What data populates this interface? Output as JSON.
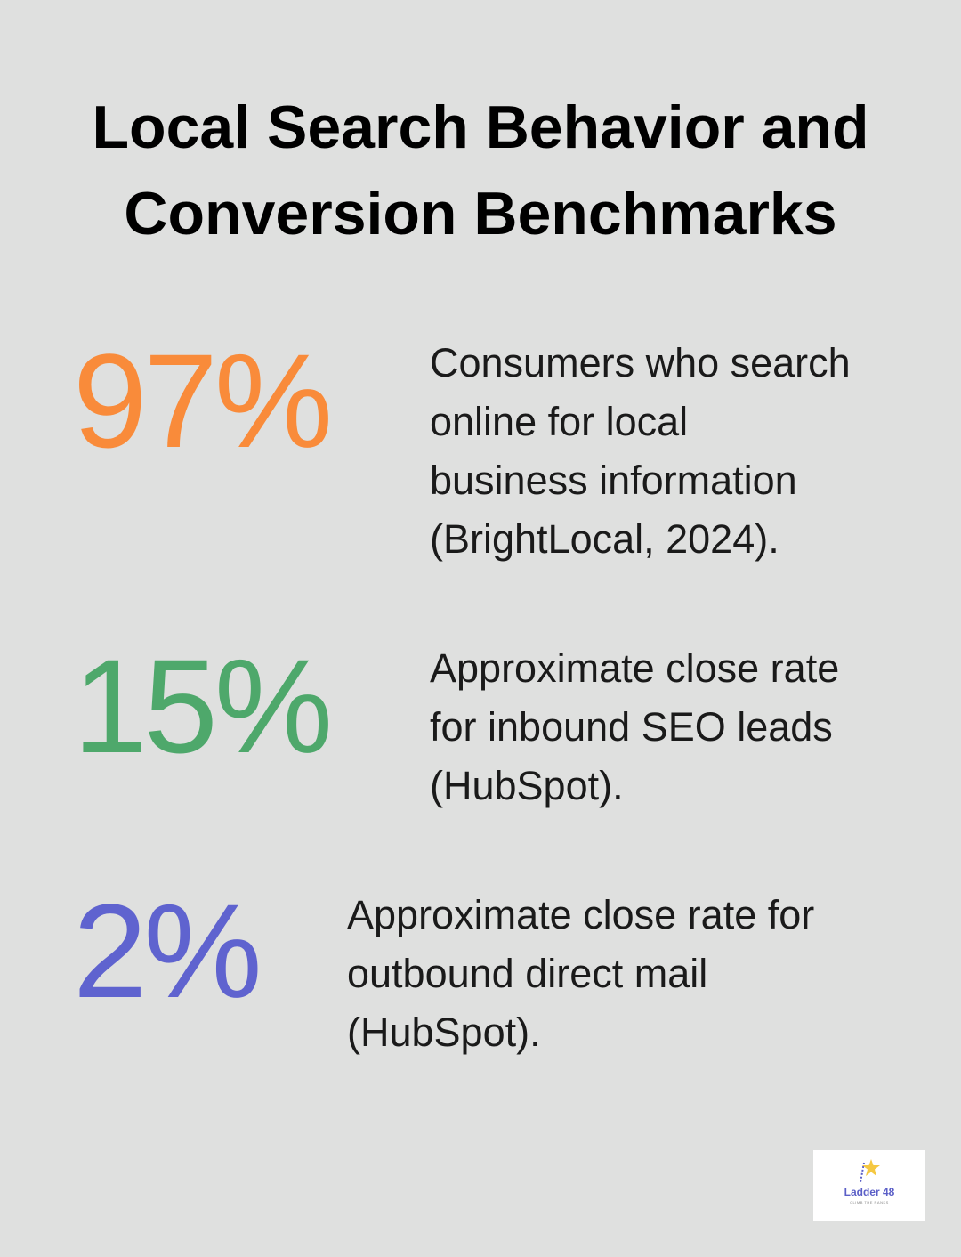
{
  "title": [
    "Local Search Behavior and",
    "Conversion Benchmarks"
  ],
  "stats": [
    {
      "value": "97%",
      "color": "#f98b3a",
      "description": [
        "Consumers who search",
        "online for local",
        "business information",
        "(BrightLocal, 2024)."
      ]
    },
    {
      "value": "15%",
      "color": "#4ea86b",
      "description": [
        "Approximate close rate",
        "for inbound SEO leads",
        "(HubSpot)."
      ]
    },
    {
      "value": "2%",
      "color": "#5f63cf",
      "description": [
        "Approximate close rate for",
        "outbound direct mail",
        "(HubSpot)."
      ]
    }
  ],
  "logo": {
    "name": "Ladder 48",
    "tagline": "CLIMB THE RANKS"
  }
}
